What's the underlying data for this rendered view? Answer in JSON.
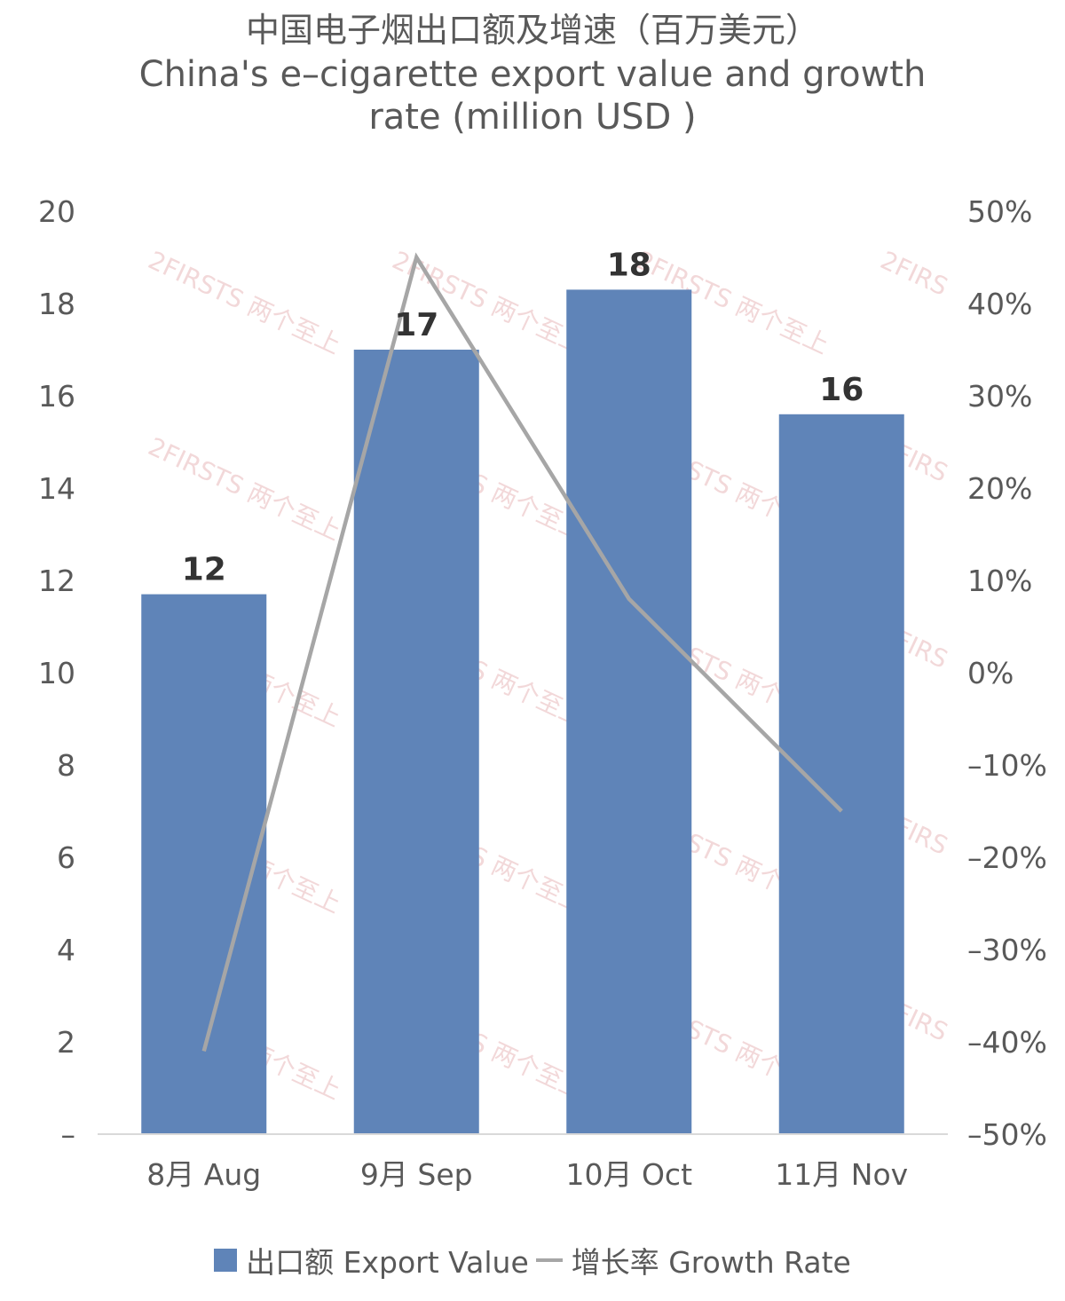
{
  "title": {
    "cn": "中国电子烟出口额及增速（百万美元）",
    "en": "China's e–cigarette export value and growth rate (million USD )"
  },
  "watermark": "2FIRSTS 两个至上",
  "colors": {
    "bar": "#5f84b8",
    "line": "#a6a6a6",
    "axis": "#d9d9d9",
    "watermark": "#e9b9bb"
  },
  "legend": {
    "bar_label": "出口额 Export Value",
    "line_label": "增长率 Growth Rate"
  },
  "chart_data": {
    "type": "bar",
    "categories": [
      "8月 Aug",
      "9月 Sep",
      "10月 Oct",
      "11月 Nov"
    ],
    "series": [
      {
        "name": "出口额 Export Value",
        "type": "bar",
        "axis": "left",
        "values": [
          11.7,
          17.0,
          18.3,
          15.6
        ],
        "labels": [
          "12",
          "17",
          "18",
          "16"
        ]
      },
      {
        "name": "增长率 Growth Rate",
        "type": "line",
        "axis": "right",
        "values": [
          -41,
          45,
          8,
          -15
        ]
      }
    ],
    "y_left": {
      "min": 0,
      "max": 20,
      "step": 2,
      "tick_labels": [
        "–",
        "2",
        "4",
        "6",
        "8",
        "10",
        "12",
        "14",
        "16",
        "18",
        "20"
      ]
    },
    "y_right": {
      "min": -50,
      "max": 50,
      "step": 10,
      "tick_labels": [
        "–50%",
        "–40%",
        "–30%",
        "–20%",
        "–10%",
        "0%",
        "10%",
        "20%",
        "30%",
        "40%",
        "50%"
      ]
    },
    "grid": false,
    "legend_position": "bottom"
  }
}
